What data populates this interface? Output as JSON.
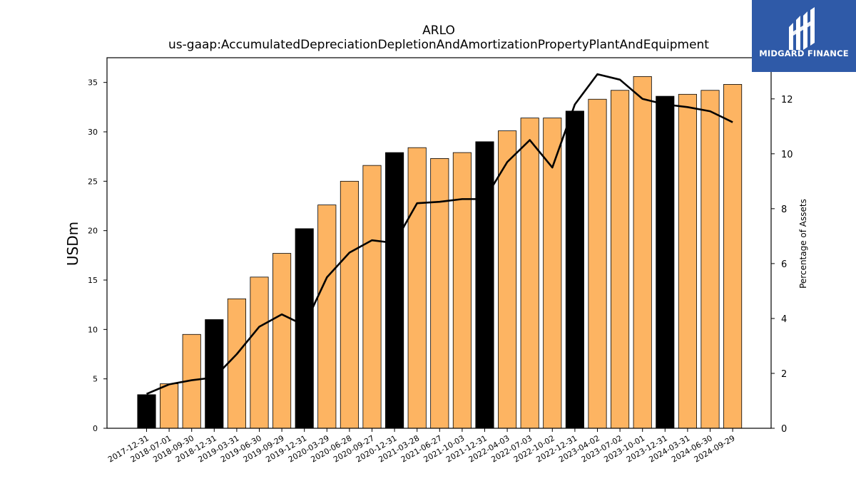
{
  "chart_data": {
    "type": "bar",
    "title": "ARLO",
    "subtitle": "us-gaap:AccumulatedDepreciationDepletionAndAmortizationPropertyPlantAndEquipment",
    "ylabel": "USDm",
    "y2label": "Percentage of Assets",
    "ylim": [
      0,
      37.5
    ],
    "y2lim": [
      0,
      13.5
    ],
    "yticks": [
      0,
      5,
      10,
      15,
      20,
      25,
      30,
      35
    ],
    "y2ticks": [
      0,
      2,
      4,
      6,
      8,
      10,
      12
    ],
    "categories": [
      "2017-12-31",
      "2018-07-01",
      "2018-09-30",
      "2018-12-31",
      "2019-03-31",
      "2019-06-30",
      "2019-09-29",
      "2019-12-31",
      "2020-03-29",
      "2020-06-28",
      "2020-09-27",
      "2020-12-31",
      "2021-03-28",
      "2021-06-27",
      "2021-10-03",
      "2021-12-31",
      "2022-04-03",
      "2022-07-03",
      "2022-10-02",
      "2022-12-31",
      "2023-04-02",
      "2023-07-02",
      "2023-10-01",
      "2023-12-31",
      "2024-03-31",
      "2024-06-30",
      "2024-09-29"
    ],
    "series": [
      {
        "type": "bar",
        "values": [
          3.4,
          4.5,
          9.5,
          11.0,
          13.1,
          15.3,
          17.7,
          20.2,
          22.6,
          25.0,
          26.6,
          27.9,
          28.4,
          27.3,
          27.9,
          29.0,
          30.1,
          31.4,
          31.4,
          32.1,
          33.3,
          34.2,
          35.6,
          33.6,
          33.8,
          34.2,
          34.8
        ]
      },
      {
        "type": "line",
        "axis": "right",
        "values": [
          1.25,
          1.6,
          1.75,
          1.85,
          2.7,
          3.7,
          4.15,
          3.75,
          5.5,
          6.4,
          6.85,
          6.75,
          8.2,
          8.25,
          8.35,
          8.35,
          9.7,
          10.5,
          9.5,
          11.8,
          12.9,
          12.7,
          12.0,
          11.8,
          11.7,
          11.55,
          11.15
        ]
      }
    ],
    "bar_colors": {
      "annual": "#000000",
      "quarterly": "#fdb462"
    },
    "annual_flags": [
      true,
      false,
      false,
      true,
      false,
      false,
      false,
      true,
      false,
      false,
      false,
      true,
      false,
      false,
      false,
      true,
      false,
      false,
      false,
      true,
      false,
      false,
      false,
      true,
      false,
      false,
      false
    ],
    "line_color": "#000000",
    "grid": false
  },
  "logo": {
    "text": "MIDGARD FINANCE",
    "background": "#2f5aa8"
  }
}
